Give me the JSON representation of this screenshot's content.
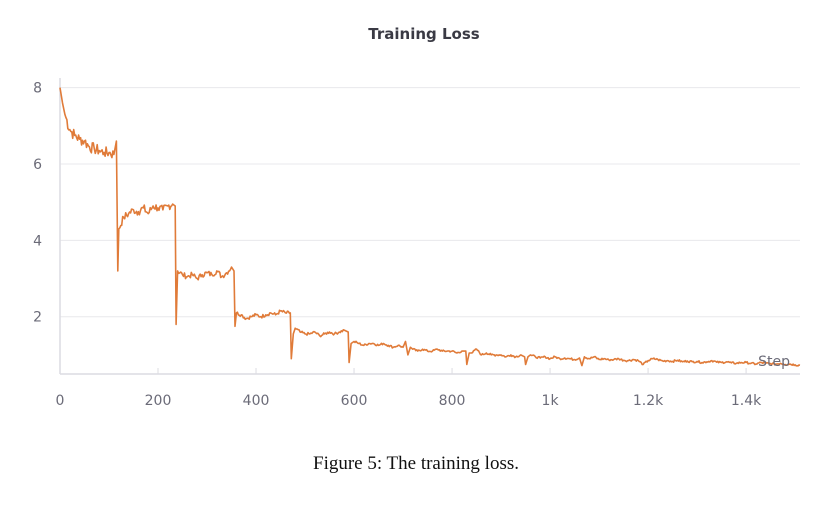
{
  "chart_data": {
    "type": "line",
    "title": "Training Loss",
    "xlabel": "Step",
    "ylabel": "",
    "xlim": [
      0,
      1510
    ],
    "ylim": [
      0.5,
      8.2
    ],
    "grid": true,
    "x_ticks": [
      0,
      200,
      400,
      600,
      800,
      1000,
      1200,
      1400
    ],
    "x_tick_labels": [
      "0",
      "200",
      "400",
      "600",
      "800",
      "1k",
      "1.2k",
      "1.4k"
    ],
    "y_ticks": [
      2,
      4,
      6,
      8
    ],
    "y_tick_labels": [
      "2",
      "4",
      "6",
      "8"
    ],
    "series": [
      {
        "name": "Training Loss",
        "color": "#e07b39",
        "points": [
          [
            0,
            8.0
          ],
          [
            5,
            7.6
          ],
          [
            10,
            7.3
          ],
          [
            20,
            6.9
          ],
          [
            30,
            6.75
          ],
          [
            40,
            6.65
          ],
          [
            50,
            6.6
          ],
          [
            60,
            6.45
          ],
          [
            70,
            6.4
          ],
          [
            80,
            6.35
          ],
          [
            90,
            6.3
          ],
          [
            100,
            6.3
          ],
          [
            110,
            6.25
          ],
          [
            115,
            6.6
          ],
          [
            118,
            3.2
          ],
          [
            120,
            4.3
          ],
          [
            130,
            4.6
          ],
          [
            140,
            4.7
          ],
          [
            150,
            4.8
          ],
          [
            160,
            4.75
          ],
          [
            170,
            4.85
          ],
          [
            180,
            4.7
          ],
          [
            190,
            4.9
          ],
          [
            200,
            4.85
          ],
          [
            210,
            4.8
          ],
          [
            220,
            4.9
          ],
          [
            230,
            4.95
          ],
          [
            235,
            4.9
          ],
          [
            237,
            1.8
          ],
          [
            240,
            3.2
          ],
          [
            250,
            3.1
          ],
          [
            260,
            3.05
          ],
          [
            270,
            3.1
          ],
          [
            280,
            3.0
          ],
          [
            290,
            3.1
          ],
          [
            300,
            3.15
          ],
          [
            310,
            3.1
          ],
          [
            320,
            3.2
          ],
          [
            330,
            3.05
          ],
          [
            340,
            3.15
          ],
          [
            350,
            3.3
          ],
          [
            355,
            3.2
          ],
          [
            357,
            1.75
          ],
          [
            360,
            2.1
          ],
          [
            370,
            2.05
          ],
          [
            380,
            1.95
          ],
          [
            390,
            2.0
          ],
          [
            400,
            2.05
          ],
          [
            410,
            2.0
          ],
          [
            420,
            2.05
          ],
          [
            430,
            2.1
          ],
          [
            440,
            2.05
          ],
          [
            450,
            2.15
          ],
          [
            460,
            2.1
          ],
          [
            470,
            2.1
          ],
          [
            472,
            0.9
          ],
          [
            476,
            1.55
          ],
          [
            480,
            1.7
          ],
          [
            490,
            1.6
          ],
          [
            500,
            1.55
          ],
          [
            510,
            1.55
          ],
          [
            520,
            1.6
          ],
          [
            530,
            1.5
          ],
          [
            540,
            1.55
          ],
          [
            550,
            1.6
          ],
          [
            560,
            1.55
          ],
          [
            570,
            1.6
          ],
          [
            580,
            1.65
          ],
          [
            588,
            1.6
          ],
          [
            590,
            0.8
          ],
          [
            594,
            1.3
          ],
          [
            600,
            1.35
          ],
          [
            610,
            1.3
          ],
          [
            620,
            1.25
          ],
          [
            630,
            1.3
          ],
          [
            640,
            1.3
          ],
          [
            650,
            1.25
          ],
          [
            660,
            1.3
          ],
          [
            670,
            1.25
          ],
          [
            680,
            1.2
          ],
          [
            690,
            1.25
          ],
          [
            700,
            1.2
          ],
          [
            705,
            1.35
          ],
          [
            710,
            1.0
          ],
          [
            715,
            1.2
          ],
          [
            720,
            1.15
          ],
          [
            730,
            1.1
          ],
          [
            740,
            1.15
          ],
          [
            750,
            1.1
          ],
          [
            760,
            1.1
          ],
          [
            770,
            1.15
          ],
          [
            780,
            1.1
          ],
          [
            790,
            1.1
          ],
          [
            800,
            1.1
          ],
          [
            810,
            1.05
          ],
          [
            820,
            1.1
          ],
          [
            828,
            1.1
          ],
          [
            830,
            0.75
          ],
          [
            835,
            1.05
          ],
          [
            840,
            1.05
          ],
          [
            850,
            1.15
          ],
          [
            860,
            1.0
          ],
          [
            870,
            1.05
          ],
          [
            880,
            1.0
          ],
          [
            890,
            1.0
          ],
          [
            900,
            1.0
          ],
          [
            910,
            0.95
          ],
          [
            920,
            1.0
          ],
          [
            930,
            0.95
          ],
          [
            940,
            1.0
          ],
          [
            948,
            0.95
          ],
          [
            950,
            0.75
          ],
          [
            955,
            0.95
          ],
          [
            960,
            1.0
          ],
          [
            970,
            0.95
          ],
          [
            980,
            0.92
          ],
          [
            990,
            0.95
          ],
          [
            1000,
            0.9
          ],
          [
            1010,
            0.95
          ],
          [
            1020,
            0.9
          ],
          [
            1030,
            0.92
          ],
          [
            1040,
            0.9
          ],
          [
            1050,
            0.88
          ],
          [
            1060,
            0.92
          ],
          [
            1065,
            0.72
          ],
          [
            1070,
            0.95
          ],
          [
            1080,
            0.9
          ],
          [
            1090,
            0.95
          ],
          [
            1100,
            0.88
          ],
          [
            1110,
            0.9
          ],
          [
            1120,
            0.87
          ],
          [
            1130,
            0.88
          ],
          [
            1140,
            0.9
          ],
          [
            1150,
            0.86
          ],
          [
            1160,
            0.85
          ],
          [
            1170,
            0.88
          ],
          [
            1180,
            0.85
          ],
          [
            1190,
            0.75
          ],
          [
            1200,
            0.85
          ],
          [
            1210,
            0.9
          ],
          [
            1220,
            0.88
          ],
          [
            1230,
            0.84
          ],
          [
            1240,
            0.85
          ],
          [
            1250,
            0.83
          ],
          [
            1260,
            0.86
          ],
          [
            1270,
            0.82
          ],
          [
            1280,
            0.84
          ],
          [
            1290,
            0.82
          ],
          [
            1300,
            0.83
          ],
          [
            1310,
            0.8
          ],
          [
            1320,
            0.82
          ],
          [
            1330,
            0.85
          ],
          [
            1340,
            0.81
          ],
          [
            1350,
            0.8
          ],
          [
            1360,
            0.82
          ],
          [
            1370,
            0.79
          ],
          [
            1380,
            0.78
          ],
          [
            1390,
            0.8
          ],
          [
            1400,
            0.8
          ],
          [
            1410,
            0.78
          ],
          [
            1420,
            0.76
          ],
          [
            1430,
            0.8
          ],
          [
            1440,
            0.78
          ],
          [
            1450,
            0.77
          ],
          [
            1460,
            0.76
          ],
          [
            1470,
            0.78
          ],
          [
            1480,
            0.75
          ],
          [
            1490,
            0.76
          ],
          [
            1500,
            0.74
          ],
          [
            1510,
            0.73
          ]
        ]
      }
    ]
  },
  "caption": "Figure 5: The training loss."
}
